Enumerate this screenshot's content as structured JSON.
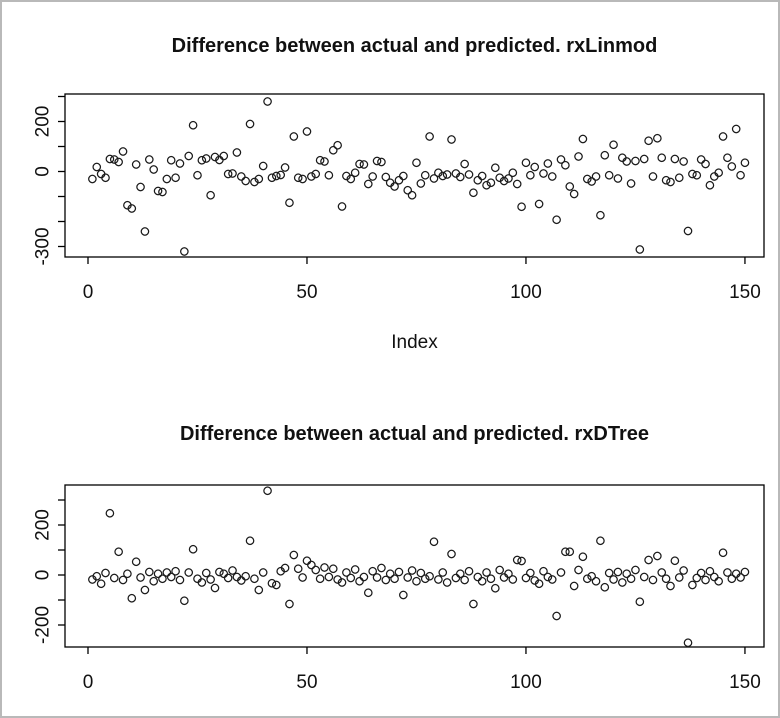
{
  "window": {
    "background": "#ffffff",
    "frame_color": "#b9b9b9"
  },
  "chart_data": [
    {
      "type": "scatter",
      "title": "Difference between actual and predicted. rxLinmod",
      "xlabel": "Index",
      "ylabel": "",
      "marker": "open-circle",
      "marker_color": "#1a1a1a",
      "grid": false,
      "legend": "none",
      "xlim": [
        -5.25,
        154.35
      ],
      "ylim": [
        -342,
        310
      ],
      "x_ticks": [
        0,
        50,
        100,
        150
      ],
      "x_tick_labels": [
        {
          "value": 0,
          "label": "0"
        },
        {
          "value": 50,
          "label": "50"
        },
        {
          "value": 100,
          "label": "100"
        },
        {
          "value": 150,
          "label": "150"
        }
      ],
      "y_ticks": [
        300,
        200,
        100,
        0,
        -100,
        -200,
        -300
      ],
      "y_tick_labels": [
        {
          "value": 200,
          "label": "200"
        },
        {
          "value": 0,
          "label": "0"
        },
        {
          "value": -300,
          "label": "-300"
        }
      ],
      "x_start_index": 1,
      "values": [
        -30,
        18,
        -10,
        -25,
        50,
        48,
        38,
        80,
        -135,
        -148,
        28,
        -62,
        -240,
        48,
        8,
        -78,
        -82,
        -30,
        45,
        -25,
        32,
        -320,
        62,
        185,
        -15,
        45,
        52,
        -95,
        58,
        46,
        62,
        -10,
        -8,
        76,
        -20,
        -38,
        190,
        -42,
        -30,
        22,
        280,
        -25,
        -18,
        -14,
        16,
        -125,
        140,
        -25,
        -30,
        160,
        -20,
        -10,
        45,
        40,
        -15,
        85,
        105,
        -140,
        -18,
        -30,
        -5,
        30,
        28,
        -50,
        -20,
        42,
        38,
        -22,
        -45,
        -60,
        -35,
        -18,
        -75,
        -95,
        35,
        -48,
        -15,
        140,
        -28,
        -5,
        -18,
        -12,
        128,
        -8,
        -22,
        30,
        -12,
        -85,
        -35,
        -18,
        -55,
        -45,
        15,
        -25,
        -38,
        -28,
        -5,
        -50,
        -141,
        35,
        -15,
        18,
        -130,
        -8,
        32,
        -20,
        -193,
        48,
        25,
        -60,
        -90,
        60,
        130,
        -30,
        -40,
        -20,
        -175,
        65,
        -15,
        107,
        -28,
        55,
        40,
        -48,
        42,
        -312,
        50,
        123,
        -20,
        133,
        55,
        -35,
        -42,
        50,
        -25,
        40,
        -238,
        -10,
        -15,
        48,
        30,
        -55,
        -20,
        -5,
        140,
        55,
        20,
        170,
        -15,
        35
      ]
    },
    {
      "type": "scatter",
      "title": "Difference between actual and predicted. rxDTree",
      "xlabel": "",
      "ylabel": "",
      "marker": "open-circle",
      "marker_color": "#1a1a1a",
      "grid": false,
      "legend": "none",
      "xlim": [
        -5.25,
        154.35
      ],
      "ylim": [
        -288,
        360
      ],
      "x_ticks": [
        0,
        50,
        100,
        150
      ],
      "x_tick_labels": [
        {
          "value": 0,
          "label": "0"
        },
        {
          "value": 50,
          "label": "50"
        },
        {
          "value": 100,
          "label": "100"
        },
        {
          "value": 150,
          "label": "150"
        }
      ],
      "y_ticks": [
        300,
        200,
        100,
        0,
        -100,
        -200
      ],
      "y_tick_labels": [
        {
          "value": 200,
          "label": "200"
        },
        {
          "value": 0,
          "label": "0"
        },
        {
          "value": -200,
          "label": "-200"
        }
      ],
      "x_start_index": 1,
      "values": [
        -18,
        -5,
        -35,
        8,
        247,
        -12,
        93,
        -20,
        5,
        -93,
        53,
        -10,
        -60,
        12,
        -25,
        5,
        -15,
        10,
        -8,
        15,
        -20,
        -103,
        10,
        103,
        -15,
        -30,
        8,
        -18,
        -52,
        12,
        5,
        -12,
        18,
        -8,
        -22,
        -5,
        137,
        -15,
        -60,
        10,
        337,
        -33,
        -40,
        15,
        28,
        -116,
        80,
        25,
        -10,
        57,
        40,
        20,
        -15,
        30,
        -8,
        25,
        -18,
        -30,
        10,
        -12,
        22,
        -25,
        -8,
        -71,
        15,
        -10,
        28,
        -20,
        5,
        -15,
        12,
        -80,
        -10,
        18,
        -25,
        8,
        -15,
        -5,
        133,
        -18,
        10,
        -30,
        84,
        -12,
        5,
        -20,
        15,
        -116,
        -8,
        -25,
        10,
        -15,
        -53,
        20,
        -10,
        5,
        -18,
        60,
        56,
        -12,
        8,
        -22,
        -35,
        15,
        -8,
        -18,
        -164,
        10,
        93,
        93,
        -44,
        20,
        73,
        -15,
        -5,
        -25,
        137,
        -49,
        8,
        -18,
        12,
        -30,
        5,
        -15,
        20,
        -107,
        -8,
        60,
        -20,
        76,
        10,
        -15,
        -44,
        57,
        -10,
        18,
        -271,
        -40,
        -12,
        8,
        -20,
        15,
        -8,
        -25,
        89,
        10,
        -15,
        5,
        -10,
        12
      ]
    }
  ]
}
